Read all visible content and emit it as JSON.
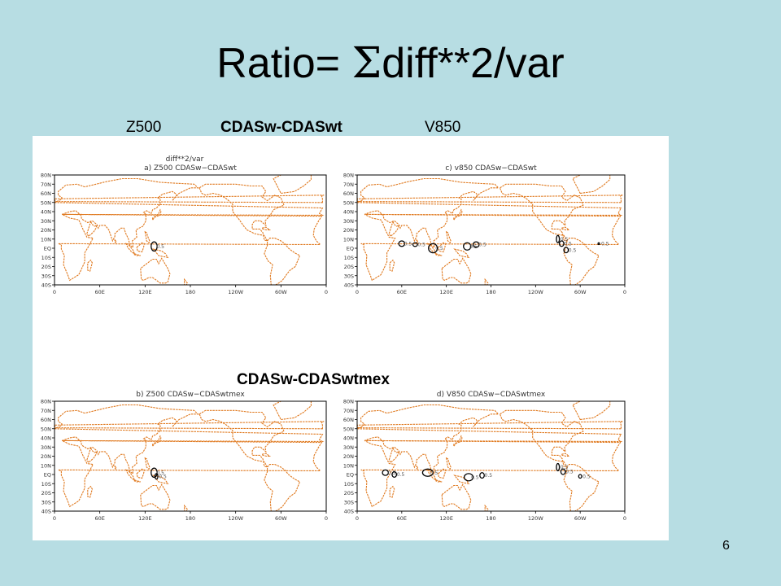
{
  "slide": {
    "title_text": "Ratio= ",
    "title_sigma": "Σ",
    "title_rest": "diff**2/var",
    "page_number": "6"
  },
  "labels": {
    "z500": "Z500",
    "cdas_top": "CDASw-CDASwt",
    "v850": "V850",
    "cdas_bottom": "CDASw-CDASwtmex"
  },
  "figure": {
    "header": "diff**2/var",
    "lat_ticks": [
      "80N",
      "70N",
      "60N",
      "50N",
      "40N",
      "30N",
      "20N",
      "10N",
      "EQ",
      "10S",
      "20S",
      "30S",
      "40S"
    ],
    "lon_ticks": [
      "0",
      "60E",
      "120E",
      "180",
      "120W",
      "60W",
      "0"
    ],
    "contour_label": "0.5",
    "colors": {
      "coast": "#e07a20",
      "contour": "#000000",
      "text": "#333333"
    },
    "panels": [
      {
        "id": "a",
        "title": "a) Z500  CDASw−CDASwt"
      },
      {
        "id": "c",
        "title": "c) v850  CDASw−CDASwt"
      },
      {
        "id": "b",
        "title": "b) Z500  CDASw−CDASwtmex"
      },
      {
        "id": "d",
        "title": "d) V850  CDASw−CDASwtmex"
      }
    ]
  }
}
